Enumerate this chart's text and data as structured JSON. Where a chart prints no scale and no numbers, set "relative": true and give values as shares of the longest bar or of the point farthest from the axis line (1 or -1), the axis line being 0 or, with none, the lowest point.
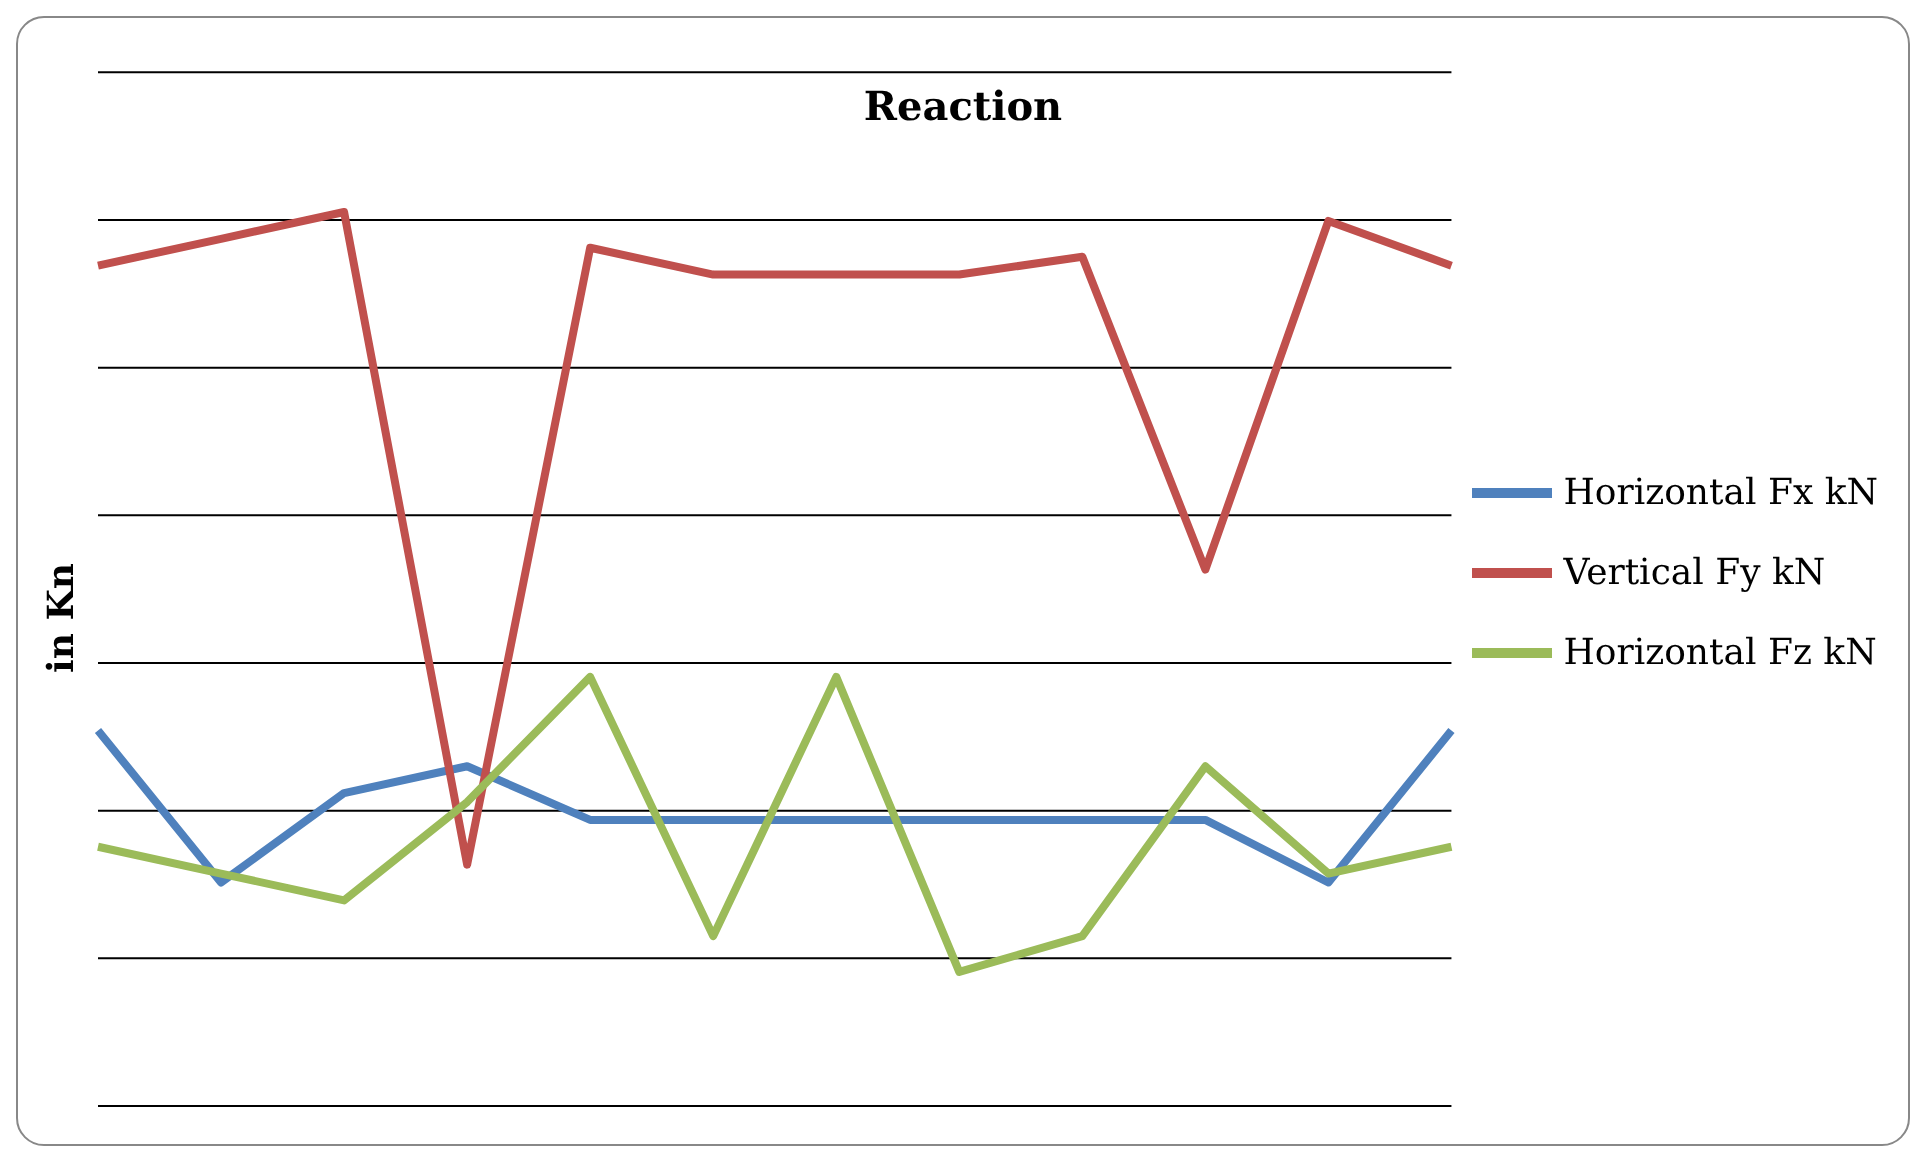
{
  "chart_data": {
    "type": "line",
    "title": "Reaction",
    "ylabel": "in Kn",
    "relative": true,
    "grid": "y",
    "legend": "right",
    "marker": "none",
    "line_style": "solid",
    "categories": [
      null,
      null,
      null,
      null,
      null,
      null,
      null,
      null,
      null,
      null,
      null,
      null
    ],
    "series": [
      {
        "name": "Horizontal Fx kN",
        "color": "#4f81bd",
        "values": [
          0.42,
          0.25,
          0.35,
          0.38,
          0.32,
          0.32,
          0.32,
          0.32,
          0.32,
          0.32,
          0.25,
          0.42
        ]
      },
      {
        "name": "Vertical Fy kN",
        "color": "#c0504d",
        "values": [
          0.94,
          0.97,
          1,
          0.27,
          0.96,
          0.93,
          0.93,
          0.93,
          0.95,
          0.6,
          0.99,
          0.94
        ]
      },
      {
        "name": "Horizontal Fz kN",
        "color": "#9bbb59",
        "values": [
          0.29,
          0.26,
          0.23,
          0.34,
          0.48,
          0.19,
          0.48,
          0.15,
          0.19,
          0.38,
          0.26,
          0.29
        ]
      }
    ]
  }
}
